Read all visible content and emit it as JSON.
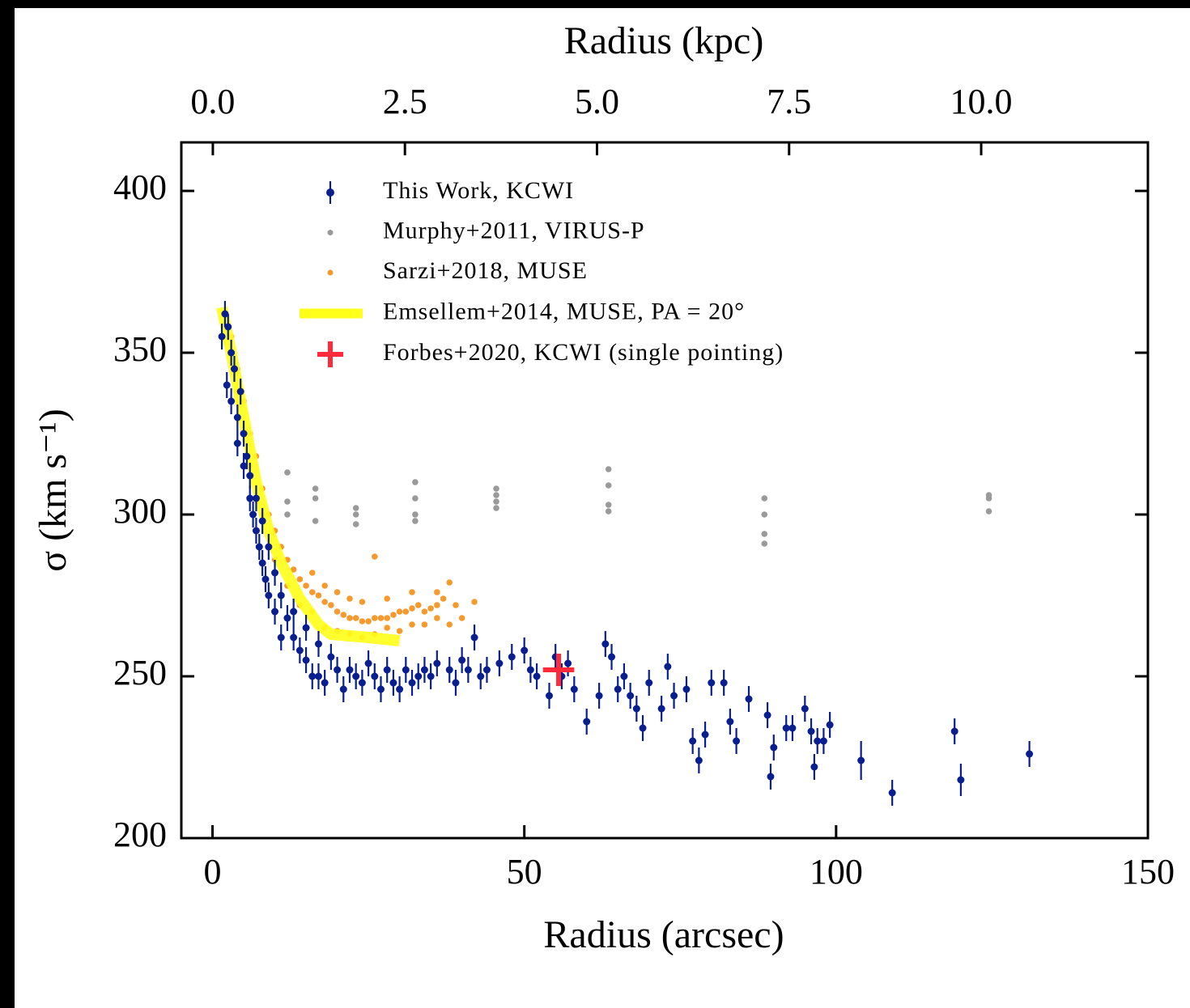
{
  "chart_data": {
    "type": "scatter",
    "xlabel": "Radius (arcsec)",
    "ylabel": "σ (km s⁻¹)",
    "x2label": "Radius (kpc)",
    "xlim": [
      -5,
      150
    ],
    "ylim": [
      200,
      415
    ],
    "x2lim": [
      -0.41,
      12.17
    ],
    "xticks": [
      0,
      50,
      100,
      150
    ],
    "yticks": [
      200,
      250,
      300,
      350,
      400
    ],
    "x2ticks": [
      {
        "value": 0,
        "label": "0.0"
      },
      {
        "value": 2.5,
        "label": "2.5"
      },
      {
        "value": 5,
        "label": "5.0"
      },
      {
        "value": 7.5,
        "label": "7.5"
      },
      {
        "value": 10,
        "label": "10.0"
      }
    ],
    "legend": "upper left",
    "series": [
      {
        "name": "Murphy+2011, VIRUS-P",
        "kind": "scatter",
        "color": "#9a9a9a",
        "x": [
          12,
          12,
          12,
          16.5,
          16.5,
          16.5,
          23,
          23,
          23,
          32.5,
          32.5,
          32.5,
          32.5,
          45.5,
          45.5,
          45.5,
          45.5,
          63.5,
          63.5,
          63.5,
          63.5,
          88.5,
          88.5,
          88.5,
          88.5,
          124.5,
          124.5,
          124.5
        ],
        "values": [
          313,
          304,
          300,
          308,
          305,
          298,
          302,
          300,
          297,
          310,
          305,
          300,
          298,
          308,
          306,
          304,
          302,
          314,
          309,
          303,
          301,
          305,
          300,
          294,
          291,
          306,
          305,
          301
        ]
      },
      {
        "name": "Sarzi+2018, MUSE",
        "kind": "scatter",
        "color": "#f79a2e",
        "x": [
          2,
          3,
          4,
          5,
          6,
          7,
          8,
          9,
          10,
          11,
          12,
          13,
          14,
          15,
          16,
          17,
          18,
          19,
          20,
          21,
          22,
          23,
          24,
          25,
          26,
          27,
          28,
          29,
          30,
          31,
          32,
          33,
          34,
          35,
          36,
          37,
          38,
          39,
          40,
          42,
          26,
          16,
          18,
          20,
          22,
          24,
          26,
          28,
          30,
          32,
          34,
          36,
          38,
          14,
          12,
          10,
          8,
          6,
          4,
          16,
          18,
          20,
          22,
          24,
          28,
          32,
          36
        ],
        "values": [
          362,
          355,
          345,
          335,
          325,
          318,
          308,
          300,
          295,
          290,
          286,
          283,
          280,
          278,
          276,
          275,
          273,
          272,
          270,
          269,
          268,
          268,
          267,
          267,
          268,
          268,
          268,
          269,
          270,
          270,
          271,
          272,
          270,
          271,
          272,
          274,
          279,
          272,
          268,
          273,
          287,
          270,
          265,
          264,
          263,
          262,
          263,
          265,
          264,
          266,
          266,
          268,
          266,
          272,
          278,
          286,
          300,
          315,
          338,
          282,
          278,
          276,
          274,
          273,
          274,
          276,
          276
        ]
      },
      {
        "name": "Emsellem+2014, MUSE, PA = 20°",
        "kind": "line",
        "color": "#ffff1a",
        "x": [
          1.5,
          3,
          5,
          7,
          9,
          11,
          14,
          17,
          19,
          25,
          30
        ],
        "values": [
          364,
          350,
          330,
          310,
          295,
          285,
          274,
          266,
          263,
          262,
          261
        ]
      },
      {
        "name": "This Work, KCWI",
        "kind": "errorbar",
        "color": "#0a1f8f",
        "x": [
          1.5,
          2,
          2.3,
          2.5,
          3,
          3,
          3.5,
          4,
          4,
          4.5,
          5,
          5,
          5.5,
          6,
          6,
          6.5,
          7,
          7,
          7.5,
          8,
          8,
          8.5,
          9,
          9,
          10,
          10,
          11,
          11,
          12,
          13,
          13,
          14,
          15,
          15,
          16,
          17,
          17,
          18,
          19,
          20,
          21,
          22,
          23,
          24,
          25,
          26,
          27,
          28,
          29,
          30,
          31,
          32,
          33,
          34,
          35,
          36,
          38,
          39,
          40,
          41,
          42,
          43,
          44,
          46,
          48,
          50,
          51,
          52,
          54,
          55,
          56,
          57,
          58,
          60,
          62,
          63,
          64,
          65,
          66,
          67,
          68,
          69,
          70,
          72,
          73,
          74,
          76,
          77,
          78,
          79,
          80,
          82,
          83,
          84,
          86,
          89,
          89.5,
          90,
          92,
          93,
          95,
          96,
          96.5,
          97,
          98,
          99,
          104,
          109,
          119,
          120,
          131
        ],
        "values": [
          355,
          362,
          340,
          358,
          350,
          335,
          345,
          330,
          322,
          338,
          325,
          315,
          318,
          305,
          312,
          300,
          295,
          305,
          290,
          285,
          298,
          280,
          290,
          275,
          282,
          270,
          275,
          262,
          268,
          262,
          270,
          258,
          265,
          255,
          250,
          260,
          250,
          248,
          256,
          252,
          246,
          252,
          250,
          248,
          254,
          250,
          246,
          252,
          248,
          246,
          252,
          248,
          250,
          252,
          250,
          254,
          252,
          248,
          255,
          252,
          262,
          250,
          252,
          254,
          256,
          258,
          252,
          250,
          244,
          256,
          250,
          254,
          246,
          236,
          244,
          260,
          256,
          246,
          250,
          244,
          240,
          234,
          248,
          240,
          253,
          244,
          246,
          230,
          224,
          232,
          248,
          248,
          236,
          230,
          243,
          238,
          219,
          228,
          234,
          234,
          240,
          233,
          222,
          230,
          230,
          235,
          224,
          214,
          233,
          218,
          226
        ],
        "errors": [
          4,
          4,
          4,
          4,
          4,
          4,
          4,
          4,
          4,
          4,
          4,
          4,
          4,
          4,
          4,
          4,
          4,
          4,
          4,
          4,
          4,
          4,
          4,
          4,
          4,
          4,
          4,
          4,
          4,
          4,
          4,
          4,
          4,
          4,
          4,
          4,
          4,
          4,
          4,
          4,
          4,
          4,
          4,
          4,
          4,
          4,
          4,
          4,
          4,
          4,
          4,
          4,
          4,
          4,
          4,
          4,
          4,
          4,
          4,
          4,
          4,
          4,
          4,
          4,
          4,
          4,
          4,
          4,
          4,
          4,
          4,
          4,
          4,
          4,
          4,
          4,
          4,
          4,
          4,
          4,
          4,
          4,
          4,
          4,
          4,
          4,
          4,
          4,
          4,
          4,
          4,
          4,
          4,
          4,
          4,
          4,
          4,
          4,
          4,
          4,
          4,
          4,
          4,
          4,
          4,
          4,
          6,
          4,
          4,
          5,
          4
        ]
      },
      {
        "name": "Forbes+2020, KCWI (single pointing)",
        "kind": "cross",
        "color": "#ff2a3a",
        "x": [
          55.5
        ],
        "values": [
          252
        ],
        "errors": [
          5
        ],
        "xerrors": [
          2.5
        ]
      }
    ]
  }
}
